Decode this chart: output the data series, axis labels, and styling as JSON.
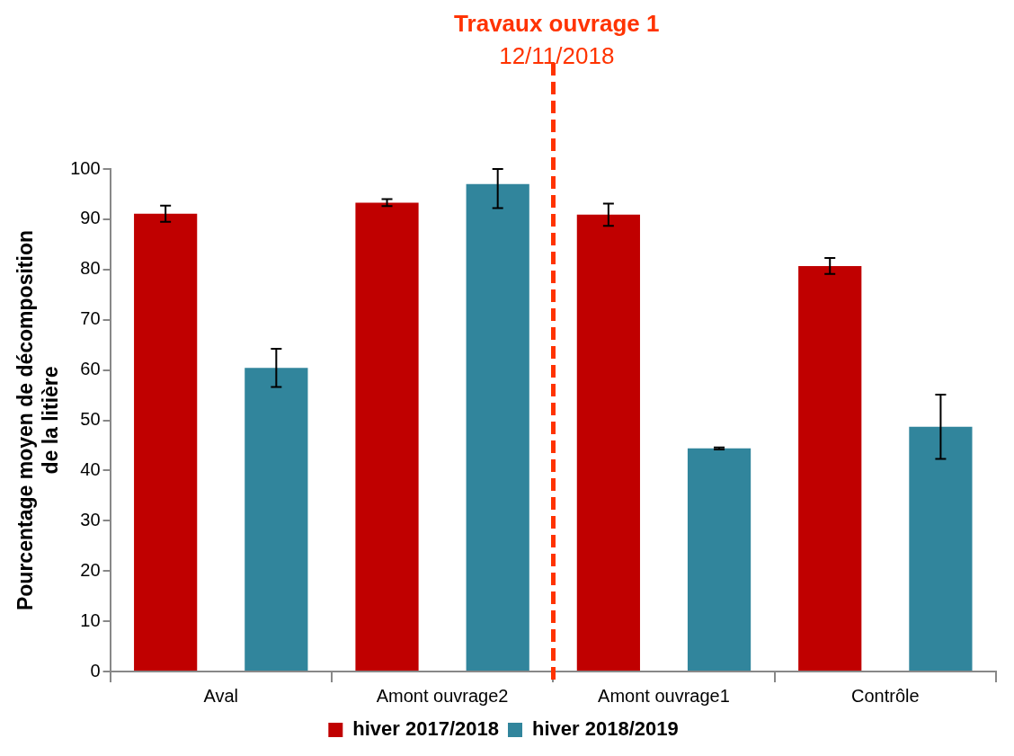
{
  "chart_data": {
    "type": "bar",
    "ylabel": "Pourcentage moyen de décomposition\nde la litière",
    "categories": [
      "Aval",
      "Amont ouvrage2",
      "Amont ouvrage1",
      "Contrôle"
    ],
    "series": [
      {
        "name": "hiver 2017/2018",
        "color": "#c00000",
        "values": [
          91.1,
          93.3,
          90.9,
          80.7
        ],
        "errors": [
          1.6,
          0.7,
          2.2,
          1.6
        ]
      },
      {
        "name": "hiver 2018/2019",
        "color": "#31859c",
        "values": [
          60.4,
          97.0,
          44.4,
          48.7
        ],
        "errors": [
          3.8,
          [
            92.2,
            100
          ],
          0.2,
          6.4
        ]
      }
    ],
    "ylim": [
      0,
      100
    ],
    "yticks": [
      0,
      10,
      20,
      30,
      40,
      50,
      60,
      70,
      80,
      90,
      100
    ],
    "grid": false,
    "legend": "bottom",
    "annotations": [
      "Travaux ouvrage 1",
      "12/11/2018"
    ]
  }
}
